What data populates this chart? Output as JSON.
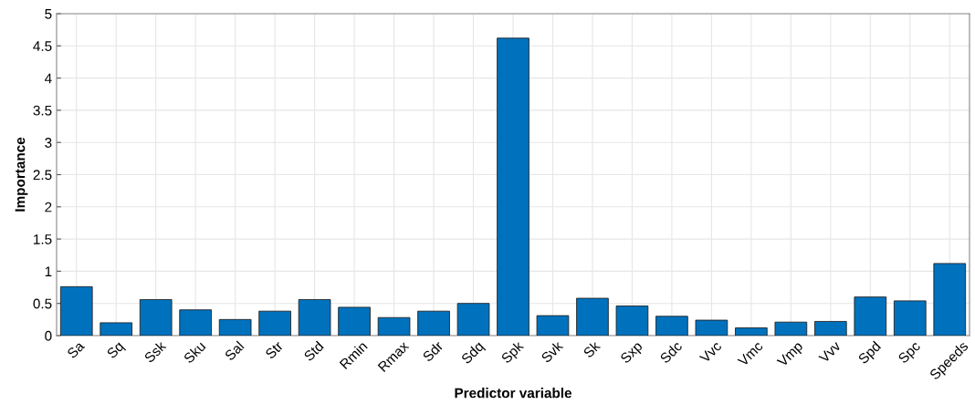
{
  "chart_data": {
    "type": "bar",
    "xlabel": "Predictor variable",
    "ylabel": "Importance",
    "categories": [
      "Sa",
      "Sq",
      "Ssk",
      "Sku",
      "Sal",
      "Str",
      "Std",
      "Rmin",
      "Rmax",
      "Sdr",
      "Sdq",
      "Spk",
      "Svk",
      "Sk",
      "Sxp",
      "Sdc",
      "Vvc",
      "Vmc",
      "Vmp",
      "Vvv",
      "Spd",
      "Spc",
      "Speeds"
    ],
    "values": [
      0.76,
      0.2,
      0.56,
      0.4,
      0.25,
      0.38,
      0.56,
      0.44,
      0.28,
      0.38,
      0.5,
      4.62,
      0.31,
      0.58,
      0.46,
      0.3,
      0.24,
      0.12,
      0.21,
      0.22,
      0.6,
      0.54,
      1.12
    ],
    "color": "#0072bd",
    "ylim": [
      0,
      5
    ],
    "yticks": [
      0,
      0.5,
      1,
      1.5,
      2,
      2.5,
      3,
      3.5,
      4,
      4.5,
      5
    ],
    "grid": true
  }
}
